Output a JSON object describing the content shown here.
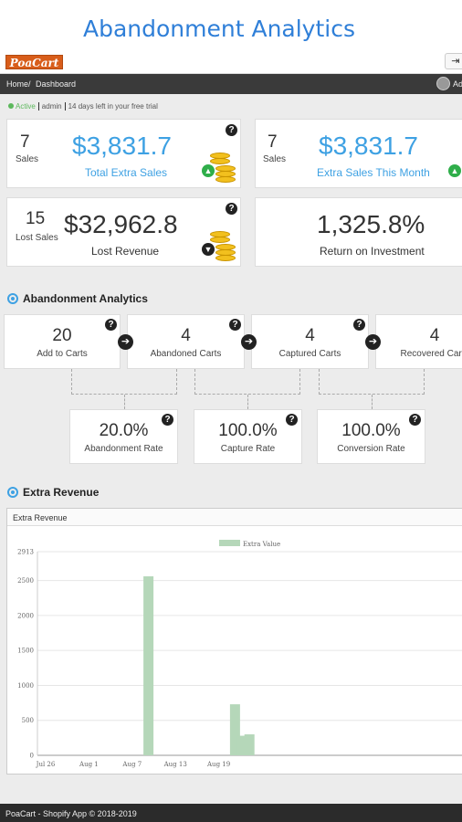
{
  "page_title": "Abandonment Analytics",
  "brand": {
    "logo_text": "PoaCart"
  },
  "header": {
    "logout_icon": "sign-out-icon"
  },
  "nav": {
    "breadcrumb": [
      "Home",
      "Dashboard"
    ],
    "breadcrumb_sep": "/",
    "user": "Ad"
  },
  "status": {
    "state": "Active",
    "user": "admin",
    "trial": "14 days left in your free trial"
  },
  "stats": [
    {
      "count": "7",
      "count_label": "Sales",
      "amount": "$3,831.7",
      "caption": "Total Extra Sales",
      "trend": "up"
    },
    {
      "count": "7",
      "count_label": "Sales",
      "amount": "$3,831.7",
      "caption": "Extra Sales This Month",
      "trend": "up"
    },
    {
      "count": "15",
      "count_label": "Lost Sales",
      "amount": "$32,962.8",
      "caption": "Lost Revenue",
      "trend": "down"
    },
    {
      "amount": "1,325.8%",
      "caption": "Return on Investment"
    }
  ],
  "help_glyph": "?",
  "analytics": {
    "title": "Abandonment Analytics",
    "funnel": [
      {
        "value": "20",
        "label": "Add to Carts"
      },
      {
        "value": "4",
        "label": "Abandoned Carts"
      },
      {
        "value": "4",
        "label": "Captured Carts"
      },
      {
        "value": "4",
        "label": "Recovered Carts"
      }
    ],
    "rates": [
      {
        "value": "20.0%",
        "label": "Abandonment Rate"
      },
      {
        "value": "100.0%",
        "label": "Capture Rate"
      },
      {
        "value": "100.0%",
        "label": "Conversion Rate"
      }
    ]
  },
  "revenue": {
    "title": "Extra Revenue",
    "panel_title": "Extra Revenue"
  },
  "chart_data": {
    "type": "bar",
    "legend": "Extra Value",
    "legend_position": "top-center",
    "x_ticks": [
      "Jul 26",
      "Aug 1",
      "Aug 7",
      "Aug 13",
      "Aug 19"
    ],
    "x_tick_days": [
      0,
      6,
      12,
      18,
      24
    ],
    "y_ticks": [
      0,
      500,
      1000,
      1500,
      2000,
      2500,
      2913
    ],
    "ylim": [
      0,
      2913
    ],
    "grid": true,
    "bar_color": "#b5d7b9",
    "points": [
      {
        "date": "Aug 9",
        "value": 2560
      },
      {
        "date": "Aug 21",
        "value": 730
      },
      {
        "date": "Aug 22",
        "value": 280
      },
      {
        "date": "Aug 23",
        "value": 300
      }
    ]
  },
  "footer": {
    "text": "PoaCart - Shopify App © 2018-2019"
  }
}
